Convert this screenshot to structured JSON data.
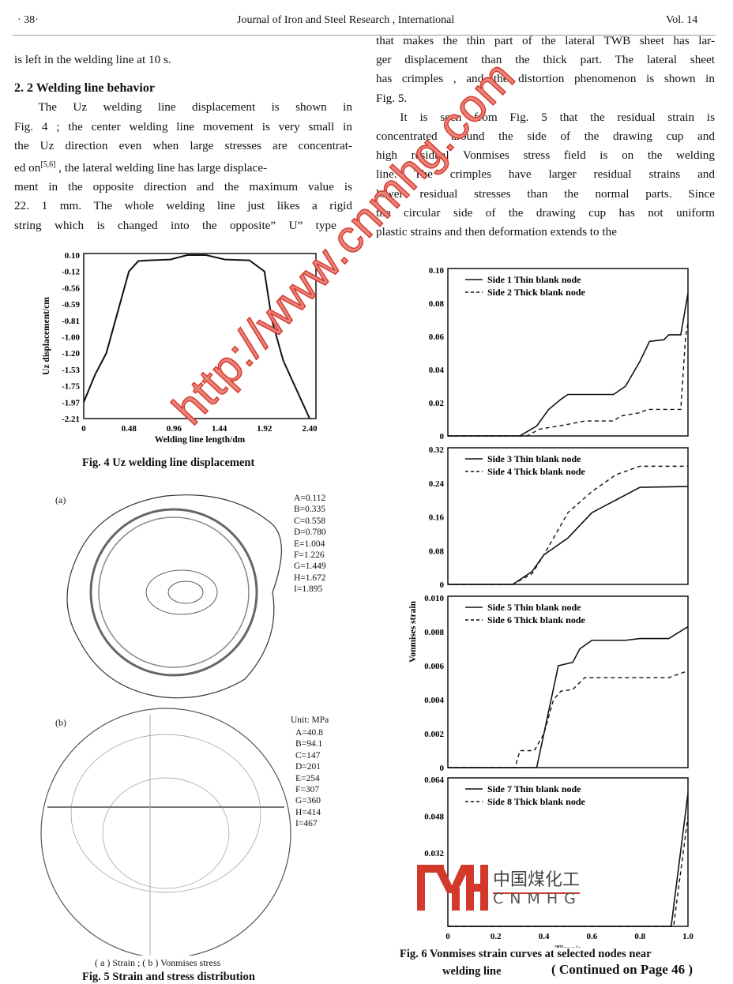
{
  "header": {
    "page": "· 38·",
    "journal": "Journal of Iron and Steel Research , International",
    "volume": "Vol. 14"
  },
  "left": {
    "lines_top": [
      "is left in the welding line at 10 s."
    ],
    "section": "2. 2    Welding line behavior",
    "para": [
      "The Uz welding line displacement is shown in",
      "Fig. 4 ; the center welding line movement is very small in",
      "the Uz direction even when large stresses are concentrat-",
      "ed on",
      "[5,6]",
      " , the lateral welding line has large displace-",
      "ment in the opposite direction and the maximum value is",
      "22. 1 mm.  The whole welding line just likes a rigid",
      "string which is changed into the opposite”  U” type ,"
    ]
  },
  "right": {
    "para1": [
      "that makes the thin part of the lateral TWB sheet has lar-",
      "ger displacement than the thick part.  The lateral sheet",
      "has crimples , and the distortion phenomenon is shown in",
      "Fig. 5."
    ],
    "para2": [
      "It is seen from Fig. 5 that the residual strain is",
      "concentrated around the side of the drawing cup and",
      "high residual Vonmises stress field is on the welding",
      "line.  The crimples have larger residual strains and",
      "lower residual stresses than the normal parts.  Since",
      "the circular side of the drawing cup has not uniform",
      "plastic strains and then deformation extends to the"
    ]
  },
  "fig4": {
    "caption": "Fig. 4    Uz welding line displacement"
  },
  "fig5": {
    "label_a": "(a)",
    "label_b": "(b)",
    "legend_a": [
      "A=0.112",
      "B=0.335",
      "C=0.558",
      "D=0.780",
      "E=1.004",
      "F=1.226",
      "G=1.449",
      "H=1.672",
      "I=1.895"
    ],
    "unit_b": "Unit: MPa",
    "legend_b": [
      "A=40.8",
      "B=94.1",
      "C=147",
      "D=201",
      "E=254",
      "F=307",
      "G=360",
      "H=414",
      "I=467"
    ],
    "subcaption": "( a ) Strain ;     ( b ) Vonmises stress",
    "caption": "Fig. 5    Strain and stress distribution"
  },
  "fig6": {
    "caption_1": "Fig. 6    Vonmises strain curves at selected nodes near",
    "caption_2": "welding line",
    "continued": "( Continued on Page 46 )"
  },
  "watermark": {
    "url": "http://www.cnmhg.com",
    "logo_cn": "中国煤化工",
    "logo_en": "CNMHG",
    "color": "#d3392b"
  },
  "chart_data": [
    {
      "id": "fig4",
      "type": "line",
      "xlabel": "Welding line length/dm",
      "ylabel": "Uz displacement/cm",
      "xticks": [
        "0",
        "0.48",
        "0.96",
        "1.44",
        "1.92",
        "2.40"
      ],
      "xlim": [
        0,
        2.4
      ],
      "yticks": [
        "0.10",
        "-0.12",
        "-0.56",
        "-0.59",
        "-0.81",
        "-1.00",
        "-1.20",
        "-1.53",
        "-1.75",
        "-1.97",
        "-2.21"
      ],
      "series": [
        {
          "x": [
            0,
            0.12,
            0.24,
            0.36,
            0.48,
            0.58,
            0.7,
            0.92,
            1.1,
            1.3,
            1.5,
            1.76,
            1.92,
            2.0,
            2.12,
            2.4
          ],
          "y": [
            -1.97,
            -1.6,
            -1.2,
            -0.7,
            -0.12,
            0.02,
            0.03,
            0.04,
            0.1,
            0.1,
            0.04,
            0.03,
            -0.12,
            -0.81,
            -1.35,
            -2.21
          ],
          "style": "solid"
        }
      ]
    },
    {
      "id": "fig6",
      "type": "line",
      "xlabel": "Time/s",
      "ylabel": "Vonmises strain",
      "xticks": [
        "0",
        "0.2",
        "0.4",
        "0.6",
        "0.8",
        "1.0"
      ],
      "xlim": [
        0,
        1.0
      ],
      "panels": [
        {
          "ylim": [
            0,
            0.1
          ],
          "yticks": [
            "0.10",
            "0.08",
            "0.06",
            "0.04",
            "0.02",
            "0"
          ],
          "series": [
            {
              "name": "Side 1   Thin blank node",
              "style": "solid",
              "x": [
                0,
                0.3,
                0.37,
                0.42,
                0.47,
                0.5,
                0.69,
                0.74,
                0.8,
                0.84,
                0.9,
                0.92,
                0.97,
                1.0
              ],
              "y": [
                0,
                0,
                0.006,
                0.016,
                0.022,
                0.025,
                0.025,
                0.03,
                0.045,
                0.057,
                0.058,
                0.061,
                0.061,
                0.086
              ]
            },
            {
              "name": "Side 2   Thick blank node",
              "style": "dashed",
              "x": [
                0,
                0.33,
                0.38,
                0.5,
                0.57,
                0.69,
                0.72,
                0.8,
                0.83,
                0.97,
                0.99,
                1.0
              ],
              "y": [
                0,
                0,
                0.004,
                0.007,
                0.009,
                0.009,
                0.012,
                0.014,
                0.016,
                0.016,
                0.06,
                0.068
              ]
            }
          ]
        },
        {
          "ylim": [
            0,
            0.32
          ],
          "yticks": [
            "0.32",
            "0.24",
            "0.16",
            "0.08",
            "0"
          ],
          "series": [
            {
              "name": "Side 3   Thin blank node",
              "style": "solid",
              "x": [
                0,
                0.27,
                0.35,
                0.4,
                0.5,
                0.6,
                0.7,
                0.8,
                1.0
              ],
              "y": [
                0,
                0,
                0.03,
                0.07,
                0.11,
                0.17,
                0.2,
                0.23,
                0.232
              ]
            },
            {
              "name": "Side 4   Thick blank node",
              "style": "dashed",
              "x": [
                0,
                0.27,
                0.35,
                0.4,
                0.5,
                0.6,
                0.7,
                0.8,
                1.0
              ],
              "y": [
                0,
                0,
                0.025,
                0.07,
                0.17,
                0.22,
                0.26,
                0.28,
                0.28
              ]
            }
          ]
        },
        {
          "ylim": [
            0,
            0.01
          ],
          "yticks": [
            "0.010",
            "0.008",
            "0.006",
            "0.004",
            "0.002",
            "0"
          ],
          "series": [
            {
              "name": "Side 5   Thin blank node",
              "style": "solid",
              "x": [
                0,
                0.37,
                0.4,
                0.43,
                0.46,
                0.52,
                0.55,
                0.6,
                0.74,
                0.8,
                0.92,
                1.0
              ],
              "y": [
                0,
                0,
                0.002,
                0.004,
                0.006,
                0.0062,
                0.007,
                0.0075,
                0.0075,
                0.0076,
                0.0076,
                0.0083
              ]
            },
            {
              "name": "Side 6   Thick blank node",
              "style": "dashed",
              "x": [
                0,
                0.28,
                0.3,
                0.36,
                0.4,
                0.44,
                0.47,
                0.52,
                0.57,
                0.92,
                1.0
              ],
              "y": [
                0,
                0,
                0.001,
                0.001,
                0.002,
                0.004,
                0.0045,
                0.0046,
                0.0053,
                0.0053,
                0.0057
              ]
            }
          ]
        },
        {
          "ylim": [
            0,
            0.064
          ],
          "yticks": [
            "0.064",
            "0.048",
            "0.032"
          ],
          "series": [
            {
              "name": "Side 7   Thin blank node",
              "style": "solid",
              "x": [
                0,
                0.93,
                1.0
              ],
              "y": [
                0,
                0,
                0.058
              ]
            },
            {
              "name": "Side 8   Thick blank node",
              "style": "dashed",
              "x": [
                0,
                0.94,
                1.0
              ],
              "y": [
                0,
                0,
                0.048
              ]
            }
          ]
        }
      ]
    }
  ]
}
